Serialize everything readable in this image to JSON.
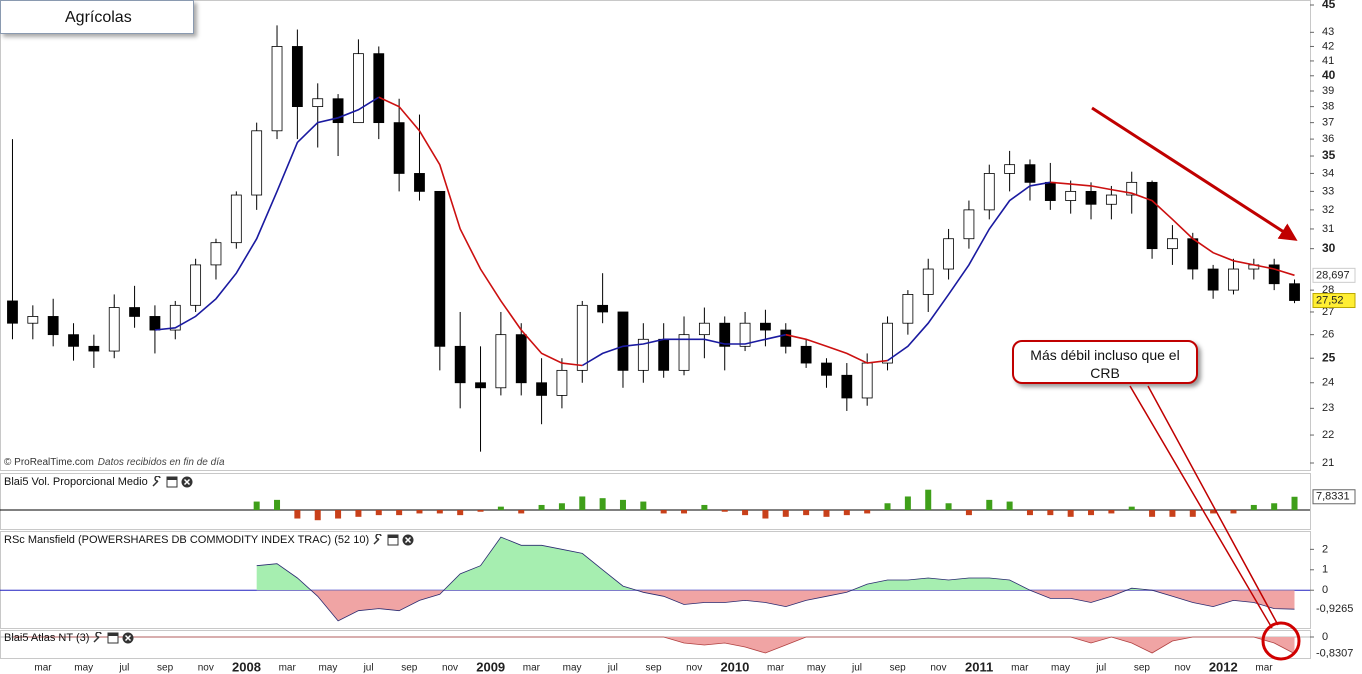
{
  "chart_data": [
    {
      "type": "candlestick",
      "title": "Agrícolas",
      "source": "© ProRealTime.com",
      "source_note": "Datos recibidos en fin de día",
      "annotation": "Más débil incluso que el CRB",
      "categories": [
        null,
        null,
        "mar",
        null,
        "may",
        null,
        "jul",
        null,
        "sep",
        null,
        "nov",
        null,
        "2008",
        null,
        "mar",
        null,
        "may",
        null,
        "jul",
        null,
        "sep",
        null,
        "nov",
        null,
        "2009",
        null,
        "mar",
        null,
        "may",
        null,
        "jul",
        null,
        "sep",
        null,
        "nov",
        null,
        "2010",
        null,
        "mar",
        null,
        "may",
        null,
        "jul",
        null,
        "sep",
        null,
        "nov",
        null,
        "2011",
        null,
        "mar",
        null,
        "may",
        null,
        "jul",
        null,
        "sep",
        null,
        "nov",
        null,
        "2012",
        null,
        "mar",
        null
      ],
      "open": [
        27.5,
        26.5,
        26.8,
        26.0,
        25.5,
        25.3,
        27.2,
        26.8,
        26.2,
        27.3,
        29.2,
        30.3,
        32.8,
        36.5,
        42.0,
        38.0,
        38.5,
        37.0,
        41.5,
        37.0,
        34.0,
        33.0,
        25.5,
        24.0,
        23.8,
        26.0,
        24.0,
        23.5,
        24.5,
        27.3,
        27.0,
        24.5,
        25.8,
        24.5,
        26.0,
        26.5,
        25.5,
        26.5,
        26.2,
        25.5,
        24.8,
        24.3,
        23.4,
        24.8,
        26.5,
        27.8,
        29.0,
        30.5,
        32.0,
        34.0,
        34.5,
        33.5,
        32.5,
        33.0,
        32.3,
        32.8,
        33.5,
        30.0,
        30.5,
        29.0,
        28.0,
        29.0,
        29.2,
        28.3
      ],
      "high": [
        36,
        27.3,
        27.6,
        26.5,
        26.0,
        27.8,
        28.2,
        27.3,
        27.5,
        29.5,
        30.5,
        33.0,
        37.0,
        43.5,
        43.2,
        39.5,
        38.8,
        42.5,
        42.0,
        38.5,
        37.5,
        33.0,
        27.0,
        25.5,
        27.0,
        26.5,
        25.0,
        25.0,
        27.5,
        28.8,
        27.0,
        26.5,
        26.5,
        26.8,
        27.2,
        26.8,
        27.0,
        27.1,
        26.5,
        25.8,
        25.0,
        24.8,
        25.2,
        26.8,
        28.0,
        29.5,
        31.0,
        32.5,
        34.5,
        35.3,
        34.8,
        34.6,
        33.6,
        33.5,
        33.3,
        34.1,
        33.6,
        31.2,
        30.8,
        29.2,
        29.5,
        29.5,
        29.5,
        28.5
      ],
      "low": [
        25.8,
        25.8,
        25.5,
        24.9,
        24.6,
        25.0,
        26.3,
        25.2,
        25.8,
        27.0,
        28.5,
        30.0,
        32.0,
        36.0,
        36.0,
        35.5,
        35.0,
        37.0,
        36.0,
        33.0,
        32.5,
        24.5,
        23.0,
        21.4,
        23.5,
        23.5,
        22.4,
        23.0,
        24.0,
        26.5,
        23.8,
        24.0,
        24.2,
        24.3,
        25.0,
        24.5,
        25.3,
        25.5,
        25.2,
        24.6,
        23.8,
        22.9,
        23.1,
        24.5,
        26.0,
        27.0,
        28.5,
        30.0,
        31.5,
        33.0,
        32.5,
        32.0,
        31.8,
        31.5,
        31.5,
        31.8,
        29.5,
        29.2,
        28.5,
        27.6,
        27.8,
        28.5,
        28.0,
        27.4
      ],
      "close": [
        26.5,
        26.8,
        26.0,
        25.5,
        25.3,
        27.2,
        26.8,
        26.2,
        27.3,
        29.2,
        30.3,
        32.8,
        36.5,
        42.0,
        38.0,
        38.5,
        37.0,
        41.5,
        37.0,
        34.0,
        33.0,
        25.5,
        24.0,
        23.8,
        26.0,
        24.0,
        23.5,
        24.5,
        27.3,
        27.0,
        24.5,
        25.8,
        24.5,
        26.0,
        26.5,
        25.5,
        26.5,
        26.2,
        25.5,
        24.8,
        24.3,
        23.4,
        24.8,
        26.5,
        27.8,
        29.0,
        30.5,
        32.0,
        34.0,
        34.5,
        33.5,
        32.5,
        33.0,
        32.3,
        32.8,
        33.5,
        30.0,
        30.5,
        29.0,
        28.0,
        29.0,
        29.2,
        28.3,
        27.52
      ],
      "value_labels": [
        null,
        null,
        null,
        null,
        null,
        null,
        null,
        null,
        null,
        null,
        null,
        null,
        null,
        null,
        null,
        null,
        null,
        null,
        null,
        null,
        null,
        null,
        null,
        null,
        null,
        null,
        null,
        null,
        null,
        null,
        null,
        null,
        null,
        null,
        null,
        null,
        null,
        null,
        null,
        null,
        null,
        null,
        null,
        null,
        null,
        null,
        null,
        null,
        null,
        null,
        null,
        null,
        null,
        null,
        null,
        null,
        null,
        null,
        null,
        null,
        null,
        null,
        null,
        "27,52"
      ],
      "up_color": "#ffffff",
      "down_color": "#000000",
      "log_scale": true,
      "ylim": [
        21,
        45
      ],
      "yticks": [
        21,
        22,
        23,
        24,
        25,
        26,
        27,
        28,
        30,
        31,
        32,
        33,
        34,
        35,
        36,
        37,
        38,
        39,
        40,
        41,
        42,
        43,
        45
      ],
      "series": [
        {
          "color": "#1a1aa0",
          "values": [
            null,
            null,
            null,
            null,
            null,
            null,
            null,
            26.2,
            26.3,
            26.8,
            27.6,
            28.8,
            30.5,
            33.0,
            35.8,
            37.0,
            37.3,
            37.8,
            38.6,
            null,
            null,
            null,
            null,
            null,
            null,
            null,
            null,
            null,
            24.7,
            25.2,
            25.5,
            25.6,
            25.8,
            25.8,
            25.8,
            25.6,
            25.6,
            25.8,
            26.0,
            null,
            null,
            null,
            null,
            24.9,
            25.5,
            26.5,
            27.8,
            29.2,
            31.0,
            32.5,
            33.3,
            33.5,
            null,
            null,
            null,
            null,
            null,
            null,
            null,
            null,
            null,
            null,
            null,
            null
          ]
        },
        {
          "color": "#cc1010",
          "values": [
            null,
            null,
            null,
            null,
            null,
            null,
            null,
            null,
            null,
            null,
            null,
            null,
            null,
            null,
            null,
            null,
            null,
            null,
            38.6,
            38.0,
            36.5,
            34.5,
            31.0,
            29.0,
            27.5,
            26.2,
            25.2,
            24.8,
            24.7,
            null,
            null,
            null,
            null,
            null,
            null,
            null,
            null,
            null,
            26.0,
            25.8,
            25.5,
            25.2,
            24.8,
            24.9,
            null,
            null,
            null,
            null,
            null,
            null,
            null,
            33.5,
            33.4,
            33.3,
            33.1,
            32.9,
            32.5,
            31.5,
            30.5,
            29.8,
            29.4,
            29.2,
            29.0,
            28.697
          ],
          "value_labels": [
            null,
            null,
            null,
            null,
            null,
            null,
            null,
            null,
            null,
            null,
            null,
            null,
            null,
            null,
            null,
            null,
            null,
            null,
            null,
            null,
            null,
            null,
            null,
            null,
            null,
            null,
            null,
            null,
            null,
            null,
            null,
            null,
            null,
            null,
            null,
            null,
            null,
            null,
            null,
            null,
            null,
            null,
            null,
            null,
            null,
            null,
            null,
            null,
            null,
            null,
            null,
            null,
            null,
            null,
            null,
            null,
            null,
            null,
            null,
            null,
            null,
            null,
            null,
            "28,697"
          ]
        }
      ]
    },
    {
      "type": "bar",
      "title": "Blai5 Vol. Proporcional Medio",
      "up_color": "#3f9f1a",
      "down_color": "#c8401a",
      "ylim": [
        -10,
        13
      ],
      "values": [
        null,
        null,
        null,
        null,
        null,
        null,
        null,
        null,
        null,
        null,
        null,
        null,
        5,
        6,
        -5,
        -6,
        -5,
        -4,
        -3,
        -3,
        -2,
        -2,
        -3,
        -1,
        2,
        -2,
        3,
        4,
        8,
        7,
        6,
        5,
        -2,
        -2,
        3,
        -1,
        -3,
        -5,
        -4,
        -3,
        -4,
        -3,
        -2,
        4,
        8,
        12,
        4,
        -3,
        6,
        5,
        -3,
        -3,
        -4,
        -3,
        -2,
        2,
        -4,
        -4,
        -4,
        -2,
        -2,
        3,
        4,
        7.8331
      ],
      "value_labels": [
        null,
        null,
        null,
        null,
        null,
        null,
        null,
        null,
        null,
        null,
        null,
        null,
        null,
        null,
        null,
        null,
        null,
        null,
        null,
        null,
        null,
        null,
        null,
        null,
        null,
        null,
        null,
        null,
        null,
        null,
        null,
        null,
        null,
        null,
        null,
        null,
        null,
        null,
        null,
        null,
        null,
        null,
        null,
        null,
        null,
        null,
        null,
        null,
        null,
        null,
        null,
        null,
        null,
        null,
        null,
        null,
        null,
        null,
        null,
        null,
        null,
        null,
        null,
        "7,8331"
      ]
    },
    {
      "type": "area",
      "title": "RSc Mansfield (POWERSHARES DB COMMODITY INDEX TRAC) (52 10)",
      "positive_color": "#a6eeb0",
      "negative_color": "#f0a4a4",
      "line_color": "#2a2a70",
      "zero_line_color": "#2020c0",
      "ylim": [
        -1.8,
        2.8
      ],
      "yticks": [
        0,
        1,
        2
      ],
      "values": [
        null,
        null,
        null,
        null,
        null,
        null,
        null,
        null,
        null,
        null,
        null,
        null,
        1.2,
        1.3,
        0.6,
        -0.3,
        -1.5,
        -1.0,
        -0.9,
        -1.0,
        -0.5,
        -0.2,
        0.8,
        1.2,
        2.6,
        2.2,
        2.2,
        2.0,
        1.8,
        1.0,
        0.2,
        -0.1,
        -0.3,
        -0.7,
        -0.6,
        -0.6,
        -0.5,
        -0.6,
        -0.8,
        -0.5,
        -0.3,
        -0.1,
        0.3,
        0.5,
        0.5,
        0.6,
        0.5,
        0.6,
        0.6,
        0.5,
        0.0,
        -0.4,
        -0.4,
        -0.6,
        -0.3,
        0.1,
        0.0,
        -0.3,
        -0.6,
        -0.8,
        -0.5,
        -0.6,
        -0.9,
        -0.9265
      ],
      "value_labels": [
        null,
        null,
        null,
        null,
        null,
        null,
        null,
        null,
        null,
        null,
        null,
        null,
        null,
        null,
        null,
        null,
        null,
        null,
        null,
        null,
        null,
        null,
        null,
        null,
        null,
        null,
        null,
        null,
        null,
        null,
        null,
        null,
        null,
        null,
        null,
        null,
        null,
        null,
        null,
        null,
        null,
        null,
        null,
        null,
        null,
        null,
        null,
        null,
        null,
        null,
        null,
        null,
        null,
        null,
        null,
        null,
        null,
        null,
        null,
        null,
        null,
        null,
        null,
        "-0,9265"
      ]
    },
    {
      "type": "area",
      "title": "Blai5 Atlas NT (3)",
      "positive_color": "#a6eeb0",
      "negative_color": "#f0a4a4",
      "line_color": "#b04040",
      "zero_line_color": "#bbbbbb",
      "ylim": [
        -1,
        0.3
      ],
      "yticks": [
        0
      ],
      "values": [
        0,
        0,
        0,
        0,
        0,
        0,
        0,
        0,
        0,
        0,
        0,
        0,
        0,
        0,
        0,
        0,
        0,
        0,
        0,
        0,
        0,
        0,
        0,
        0,
        0,
        0,
        0,
        0,
        0,
        0,
        0,
        0,
        0,
        -0.3,
        -0.4,
        -0.3,
        -0.5,
        -0.8,
        -0.4,
        0,
        0,
        0,
        0,
        0,
        0,
        0,
        0,
        0,
        0,
        0,
        0,
        0,
        0,
        -0.3,
        0,
        -0.3,
        -0.8,
        -0.2,
        0,
        0,
        0,
        0,
        -0.3,
        -0.8307
      ],
      "value_labels": [
        null,
        null,
        null,
        null,
        null,
        null,
        null,
        null,
        null,
        null,
        null,
        null,
        null,
        null,
        null,
        null,
        null,
        null,
        null,
        null,
        null,
        null,
        null,
        null,
        null,
        null,
        null,
        null,
        null,
        null,
        null,
        null,
        null,
        null,
        null,
        null,
        null,
        null,
        null,
        null,
        null,
        null,
        null,
        null,
        null,
        null,
        null,
        null,
        null,
        null,
        null,
        null,
        null,
        null,
        null,
        null,
        null,
        null,
        null,
        null,
        null,
        null,
        null,
        "-0,8307"
      ]
    }
  ]
}
